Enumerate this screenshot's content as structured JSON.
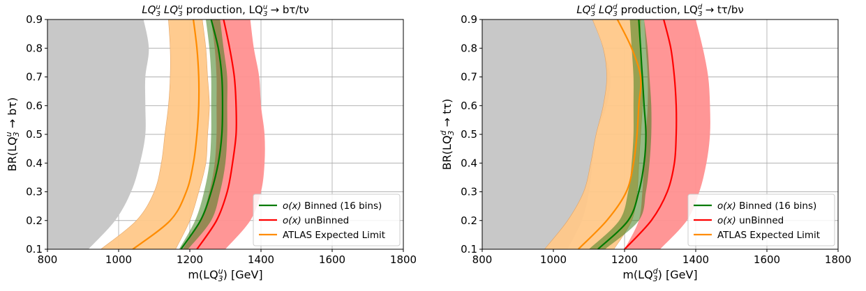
{
  "chart_data": [
    {
      "type": "line",
      "title": "LQ3u LQ3u production, LQ3u → bτ/tν",
      "xlabel": "m(LQ3u) [GeV]",
      "ylabel": "BR(LQ3u → bτ)",
      "xlim": [
        800,
        1800
      ],
      "ylim": [
        0.1,
        0.9
      ],
      "x_ticks": [
        "800",
        "1000",
        "1200",
        "1400",
        "1600",
        "1800"
      ],
      "y_ticks": [
        "0.1",
        "0.2",
        "0.3",
        "0.4",
        "0.5",
        "0.6",
        "0.7",
        "0.8",
        "0.9"
      ],
      "grid": true,
      "legend_position": "lower-right",
      "y": [
        0.1,
        0.2,
        0.3,
        0.4,
        0.5,
        0.6,
        0.7,
        0.8,
        0.9
      ],
      "excluded_region": {
        "color": "#c8c8c8",
        "boundary_x": [
          915,
          990,
          1035,
          1060,
          1075,
          1075,
          1075,
          1085,
          1070
        ]
      },
      "bands": [
        {
          "name": "ATLAS Expected Limit",
          "color": "#ffc98a",
          "lower": [
            950,
            1050,
            1100,
            1120,
            1130,
            1140,
            1145,
            1145,
            1140
          ],
          "upper": [
            1160,
            1200,
            1225,
            1245,
            1250,
            1255,
            1250,
            1245,
            1235
          ]
        },
        {
          "name": "o(x) unBinned",
          "color": "#ff9090",
          "lower": [
            1180,
            1230,
            1255,
            1270,
            1275,
            1275,
            1275,
            1270,
            1260
          ],
          "upper": [
            1300,
            1370,
            1400,
            1410,
            1410,
            1400,
            1395,
            1380,
            1370
          ]
        },
        {
          "name": "o(x) Binned (16 bins)",
          "color": "#3f7f1f",
          "lower": [
            1170,
            1215,
            1240,
            1255,
            1260,
            1260,
            1260,
            1255,
            1245
          ],
          "upper": [
            1195,
            1260,
            1285,
            1300,
            1305,
            1305,
            1305,
            1295,
            1285
          ]
        }
      ],
      "series": [
        {
          "name": "o(x) Binned (16 bins)",
          "color": "#007a00",
          "x": [
            1175,
            1230,
            1260,
            1280,
            1290,
            1292,
            1290,
            1280,
            1260
          ]
        },
        {
          "name": "o(x) unBinned",
          "color": "#ff0000",
          "x": [
            1220,
            1275,
            1305,
            1320,
            1330,
            1330,
            1325,
            1312,
            1295
          ]
        },
        {
          "name": "ATLAS Expected Limit",
          "color": "#ff8c00",
          "x": [
            1040,
            1145,
            1190,
            1210,
            1220,
            1225,
            1225,
            1220,
            1210
          ]
        }
      ]
    },
    {
      "type": "line",
      "title": "LQ3d LQ3d production, LQ3d → tτ/bν",
      "xlabel": "m(LQ3d) [GeV]",
      "ylabel": "BR(LQ3d → tτ)",
      "xlim": [
        800,
        1800
      ],
      "ylim": [
        0.1,
        0.9
      ],
      "x_ticks": [
        "800",
        "1000",
        "1200",
        "1400",
        "1600",
        "1800"
      ],
      "y_ticks": [
        "0.1",
        "0.2",
        "0.3",
        "0.4",
        "0.5",
        "0.6",
        "0.7",
        "0.8",
        "0.9"
      ],
      "grid": true,
      "legend_position": "lower-right",
      "y": [
        0.1,
        0.2,
        0.3,
        0.4,
        0.5,
        0.6,
        0.7,
        0.8,
        0.9
      ],
      "excluded_region": {
        "color": "#c8c8c8",
        "boundary_x": [
          1040,
          1080,
          1100,
          1110,
          1120,
          1150,
          1160,
          1140,
          1110
        ]
      },
      "bands": [
        {
          "name": "ATLAS Expected Limit",
          "color": "#ffc98a",
          "lower": [
            975,
            1040,
            1085,
            1105,
            1120,
            1140,
            1150,
            1140,
            1110
          ],
          "upper": [
            1170,
            1220,
            1235,
            1240,
            1245,
            1250,
            1250,
            1245,
            1245
          ]
        },
        {
          "name": "o(x) unBinned",
          "color": "#ff9090",
          "lower": [
            1200,
            1240,
            1250,
            1255,
            1260,
            1265,
            1265,
            1260,
            1255
          ],
          "upper": [
            1300,
            1375,
            1410,
            1430,
            1440,
            1440,
            1435,
            1420,
            1400
          ]
        },
        {
          "name": "o(x) Binned (16 bins)",
          "color": "#3f7f1f",
          "lower": [
            1100,
            1185,
            1210,
            1220,
            1225,
            1225,
            1225,
            1220,
            1215
          ],
          "upper": [
            1145,
            1240,
            1260,
            1270,
            1275,
            1275,
            1270,
            1265,
            1255
          ]
        }
      ],
      "series": [
        {
          "name": "o(x) Binned (16 bins)",
          "color": "#007a00",
          "x": [
            1125,
            1210,
            1240,
            1255,
            1260,
            1255,
            1250,
            1245,
            1240
          ]
        },
        {
          "name": "o(x) unBinned",
          "color": "#ff0000",
          "x": [
            1200,
            1275,
            1320,
            1340,
            1345,
            1345,
            1340,
            1330,
            1310
          ]
        },
        {
          "name": "ATLAS Expected Limit",
          "color": "#ff8c00",
          "x": [
            1070,
            1150,
            1205,
            1225,
            1235,
            1240,
            1245,
            1220,
            1180
          ]
        }
      ]
    }
  ],
  "panels": [
    {
      "title_main": "LQ",
      "title_sup": "u",
      "title_sub": "3",
      "title_mid": " LQ",
      "title_rest": " production, LQ",
      "title_tail": "→ bτ/tν",
      "xlabel_pre": "m(LQ",
      "xlabel_post": ") [GeV]",
      "ylabel_pre": "BR(LQ",
      "ylabel_post": " → bτ)"
    },
    {
      "title_main": "LQ",
      "title_sup": "d",
      "title_sub": "3",
      "title_mid": " LQ",
      "title_rest": " production, LQ",
      "title_tail": "→ tτ/bν",
      "xlabel_pre": "m(LQ",
      "xlabel_post": ") [GeV]",
      "ylabel_pre": "BR(LQ",
      "ylabel_post": " → tτ)"
    }
  ],
  "legend": {
    "binned_prefix": "o(x)",
    "binned_suffix": " Binned (16 bins)",
    "unbinned_prefix": "o(x)",
    "unbinned_suffix": " unBinned",
    "atlas": "ATLAS Expected Limit"
  }
}
